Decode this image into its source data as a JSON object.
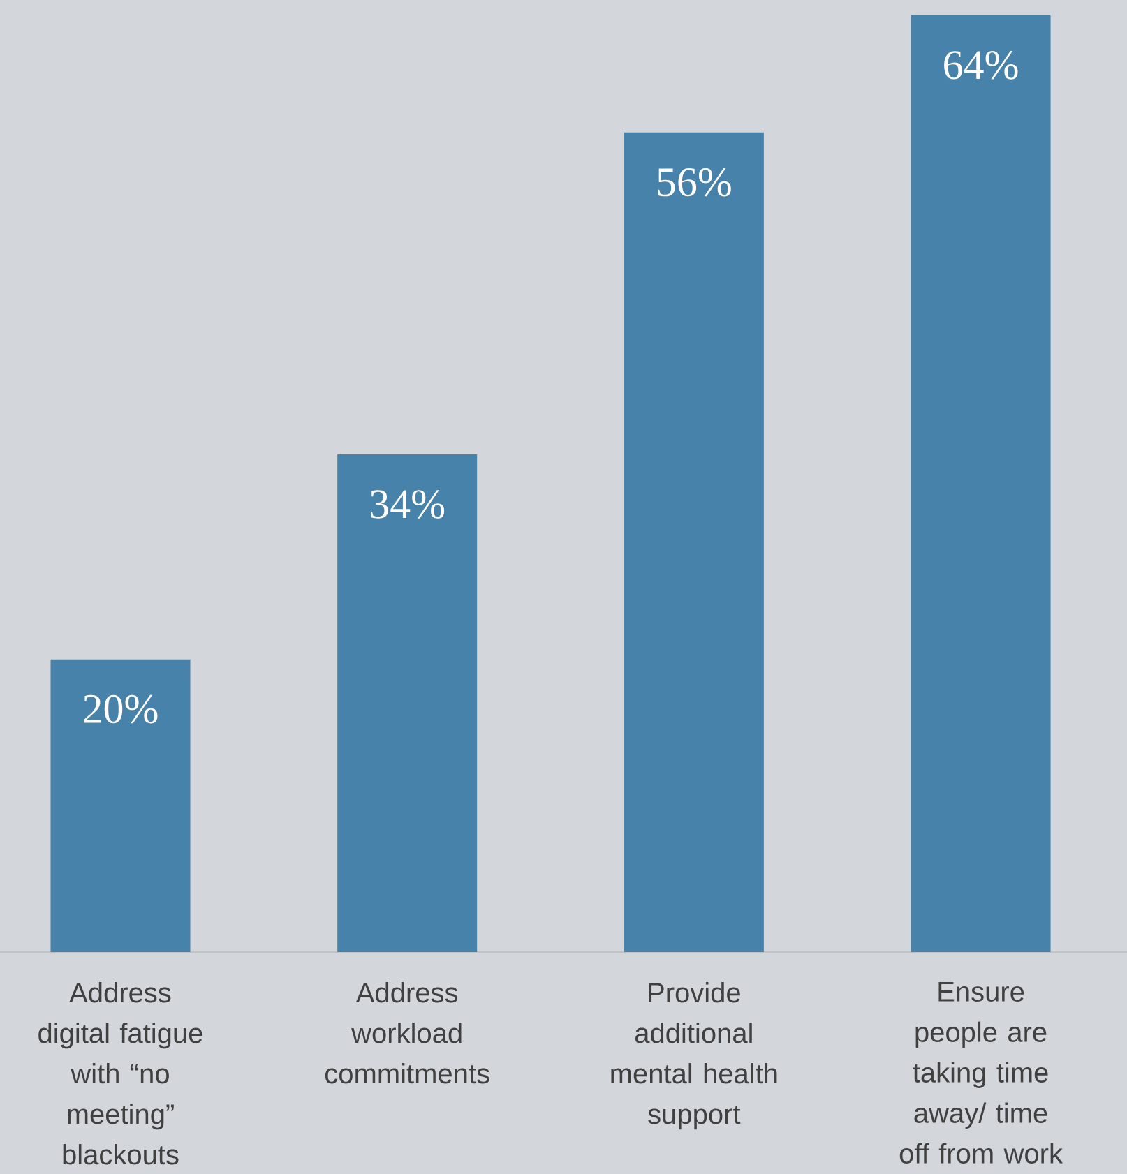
{
  "chart_data": {
    "type": "bar",
    "categories": [
      "Address digital fatigue with “no meeting” blackouts",
      "Address workload commitments",
      "Provide additional mental health support",
      "Ensure people are taking time away/ time off from work"
    ],
    "values": [
      20,
      34,
      56,
      64
    ],
    "value_labels": [
      "20%",
      "34%",
      "56%",
      "64%"
    ],
    "color": "#4682aa"
  }
}
